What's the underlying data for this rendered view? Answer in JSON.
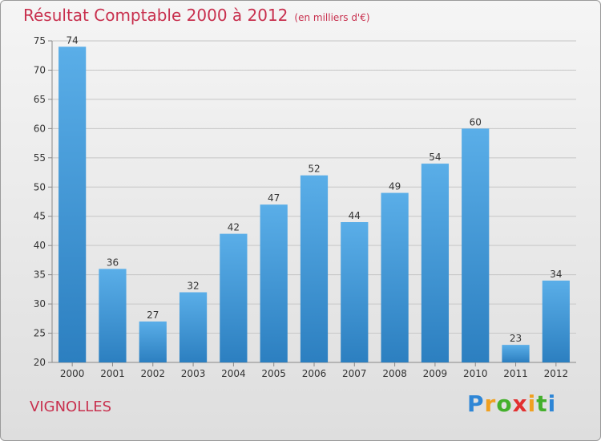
{
  "title": "Résultat Comptable 2000 à 2012",
  "subtitle": "(en milliers d'€)",
  "town": "VIGNOLLES",
  "logo": {
    "letters": [
      "P",
      "r",
      "o",
      "x",
      "i",
      "t",
      "i"
    ],
    "colors": [
      "#2e86d6",
      "#f0a020",
      "#44b02c",
      "#e23030",
      "#f0a020",
      "#44b02c",
      "#2e86d6"
    ]
  },
  "colors": {
    "title": "#c8304e",
    "bar_light": "#5aaee8",
    "bar_dark": "#2c7fc0"
  },
  "chart_data": {
    "type": "bar",
    "title": "Résultat Comptable 2000 à 2012",
    "subtitle": "(en milliers d'€)",
    "categories": [
      "2000",
      "2001",
      "2002",
      "2003",
      "2004",
      "2005",
      "2006",
      "2007",
      "2008",
      "2009",
      "2010",
      "2011",
      "2012"
    ],
    "values": [
      74,
      36,
      27,
      32,
      42,
      47,
      52,
      44,
      49,
      54,
      60,
      23,
      34
    ],
    "ylim": [
      20,
      75
    ],
    "yticks": [
      20,
      25,
      30,
      35,
      40,
      45,
      50,
      55,
      60,
      65,
      70,
      75
    ],
    "grid": true,
    "xlabel": "",
    "ylabel": ""
  }
}
